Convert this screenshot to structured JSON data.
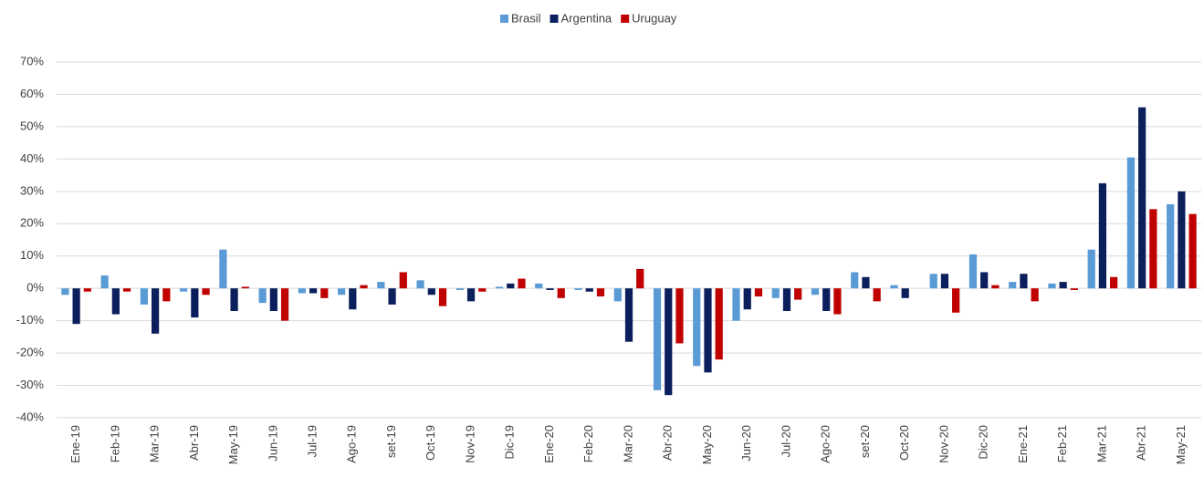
{
  "chart_data": {
    "type": "bar",
    "categories": [
      "Ene-19",
      "Feb-19",
      "Mar-19",
      "Abr-19",
      "May-19",
      "Jun-19",
      "Jul-19",
      "Ago-19",
      "set-19",
      "Oct-19",
      "Nov-19",
      "Dic-19",
      "Ene-20",
      "Feb-20",
      "Mar-20",
      "Abr-20",
      "May-20",
      "Jun-20",
      "Jul-20",
      "Ago-20",
      "set-20",
      "Oct-20",
      "Nov-20",
      "Dic-20",
      "Ene-21",
      "Feb-21",
      "Mar-21",
      "Abr-21",
      "May-21"
    ],
    "series": [
      {
        "name": "Brasil",
        "color": "#5b9bd5",
        "values": [
          -2,
          4,
          -5,
          -1,
          12,
          -4.5,
          -1.5,
          -2,
          2,
          2.5,
          -0.5,
          0.5,
          1.5,
          -0.5,
          -4,
          -31.5,
          -24,
          -10,
          -3,
          -2,
          5,
          1,
          4.5,
          10.5,
          2,
          1.5,
          12,
          40.5,
          26
        ]
      },
      {
        "name": "Argentina",
        "color": "#0b1f5c",
        "values": [
          -11,
          -8,
          -14,
          -9,
          -7,
          -7,
          -1.5,
          -6.5,
          -5,
          -2,
          -4,
          1.5,
          -0.5,
          -1,
          -16.5,
          -33,
          -26,
          -6.5,
          -7,
          -7,
          3.5,
          -3,
          4.5,
          5,
          4.5,
          2,
          32.5,
          56,
          30
        ]
      },
      {
        "name": "Uruguay",
        "color": "#c00000",
        "values": [
          -1,
          -1,
          -4,
          -2,
          0.5,
          -10,
          -3,
          1,
          5,
          -5.5,
          -1,
          3,
          -3,
          -2.5,
          6,
          -17,
          -22,
          -2.5,
          -3.5,
          -8,
          -4,
          0,
          -7.5,
          1,
          -4,
          -0.5,
          3.5,
          24.5,
          23
        ]
      }
    ],
    "ylim": [
      -40,
      70
    ],
    "yticks": [
      {
        "value": -40,
        "label": "-40%"
      },
      {
        "value": -30,
        "label": "-30%"
      },
      {
        "value": -20,
        "label": "-20%"
      },
      {
        "value": -10,
        "label": "-10%"
      },
      {
        "value": 0,
        "label": "0%"
      },
      {
        "value": 10,
        "label": "10%"
      },
      {
        "value": 20,
        "label": "20%"
      },
      {
        "value": 30,
        "label": "30%"
      },
      {
        "value": 40,
        "label": "40%"
      },
      {
        "value": 50,
        "label": "50%"
      },
      {
        "value": 60,
        "label": "60%"
      },
      {
        "value": 70,
        "label": "70%"
      }
    ],
    "grid": true,
    "legend": "top"
  }
}
